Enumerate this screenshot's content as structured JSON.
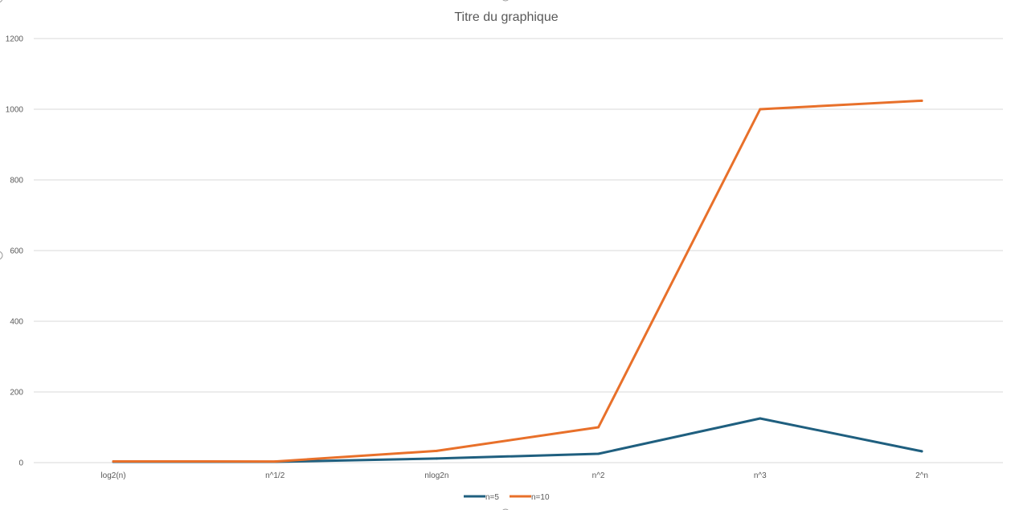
{
  "chart_data": {
    "type": "line",
    "title": "Titre du graphique",
    "xlabel": "",
    "ylabel": "",
    "categories": [
      "log2(n)",
      "n^1/2",
      "nlog2n",
      "n^2",
      "n^3",
      "2^n"
    ],
    "ylim": [
      0,
      1200
    ],
    "yticks": [
      0,
      200,
      400,
      600,
      800,
      1000,
      1200
    ],
    "grid": true,
    "legend_position": "bottom",
    "series": [
      {
        "name": "n=5",
        "color": "#1f5f7f",
        "values": [
          2.32,
          2.24,
          11.61,
          25,
          125,
          32
        ]
      },
      {
        "name": "n=10",
        "color": "#e8702a",
        "values": [
          3.32,
          3.16,
          33.22,
          100,
          1000,
          1024
        ]
      }
    ]
  }
}
